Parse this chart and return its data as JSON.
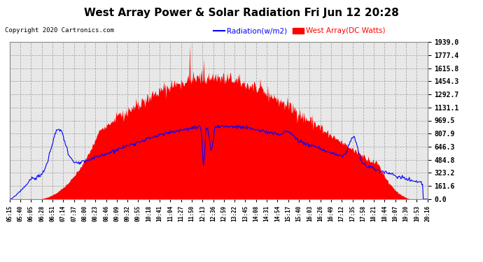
{
  "title": "West Array Power & Solar Radiation Fri Jun 12 20:28",
  "copyright": "Copyright 2020 Cartronics.com",
  "legend_radiation": "Radiation(w/m2)",
  "legend_west": "West Array(DC Watts)",
  "yticks": [
    0.0,
    161.6,
    323.2,
    484.8,
    646.3,
    807.9,
    969.5,
    1131.1,
    1292.7,
    1454.3,
    1615.8,
    1777.4,
    1939.0
  ],
  "ymax": 1939.0,
  "ymin": 0.0,
  "xtick_labels": [
    "05:15",
    "05:40",
    "06:05",
    "06:28",
    "06:51",
    "07:14",
    "07:37",
    "08:00",
    "08:23",
    "08:46",
    "09:09",
    "09:32",
    "09:55",
    "10:18",
    "10:41",
    "11:04",
    "11:27",
    "11:50",
    "12:13",
    "12:36",
    "12:59",
    "13:22",
    "13:45",
    "14:08",
    "14:31",
    "14:54",
    "15:17",
    "15:40",
    "16:03",
    "16:26",
    "16:49",
    "17:12",
    "17:35",
    "17:58",
    "18:21",
    "18:44",
    "19:07",
    "19:30",
    "19:53",
    "20:16"
  ],
  "bg_color": "#ffffff",
  "plot_bg_color": "#e8e8e8",
  "grid_color": "#aaaaaa",
  "red_color": "#ff0000",
  "blue_color": "#0000ff",
  "title_color": "#000000",
  "copyright_color": "#000000"
}
